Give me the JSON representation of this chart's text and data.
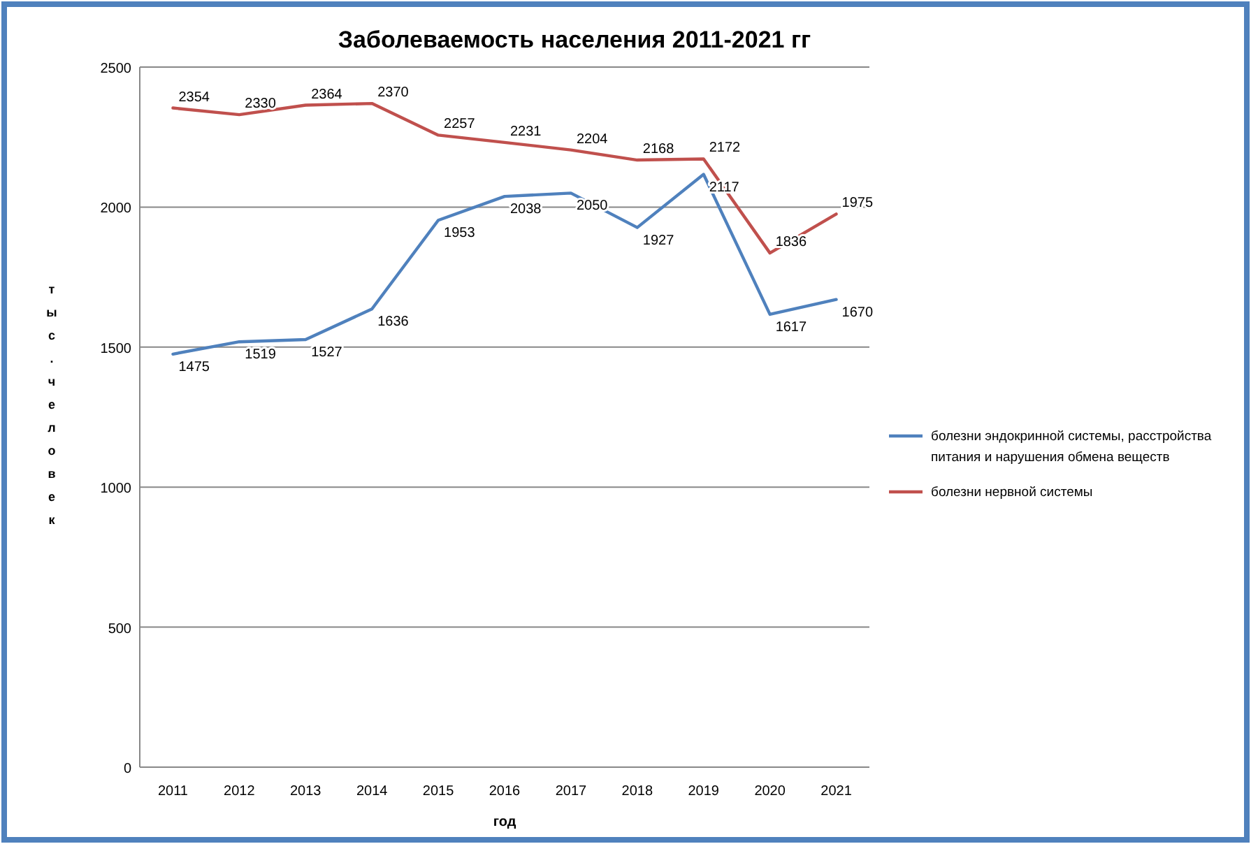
{
  "chart_data": {
    "type": "line",
    "title": "Заболеваемость населения 2011-2021 гг",
    "xlabel": "год",
    "ylabel": "тыс. человек",
    "categories": [
      "2011",
      "2012",
      "2013",
      "2014",
      "2015",
      "2016",
      "2017",
      "2018",
      "2019",
      "2020",
      "2021"
    ],
    "series": [
      {
        "name": "болезни эндокринной системы, расстройства питания и нарушения обмена веществ",
        "color": "#4f81bd",
        "values": [
          1475,
          1519,
          1527,
          1636,
          1953,
          2038,
          2050,
          1927,
          2117,
          1617,
          1670
        ]
      },
      {
        "name": "болезни нервной системы",
        "color": "#c0504d",
        "values": [
          2354,
          2330,
          2364,
          2370,
          2257,
          2231,
          2204,
          2168,
          2172,
          1836,
          1975
        ]
      }
    ],
    "ylim": [
      0,
      2500
    ],
    "yticks": [
      0,
      500,
      1000,
      1500,
      2000,
      2500
    ],
    "grid": "y",
    "legend": "right",
    "data_labels": true,
    "marker": "none",
    "line_style": "solid"
  }
}
